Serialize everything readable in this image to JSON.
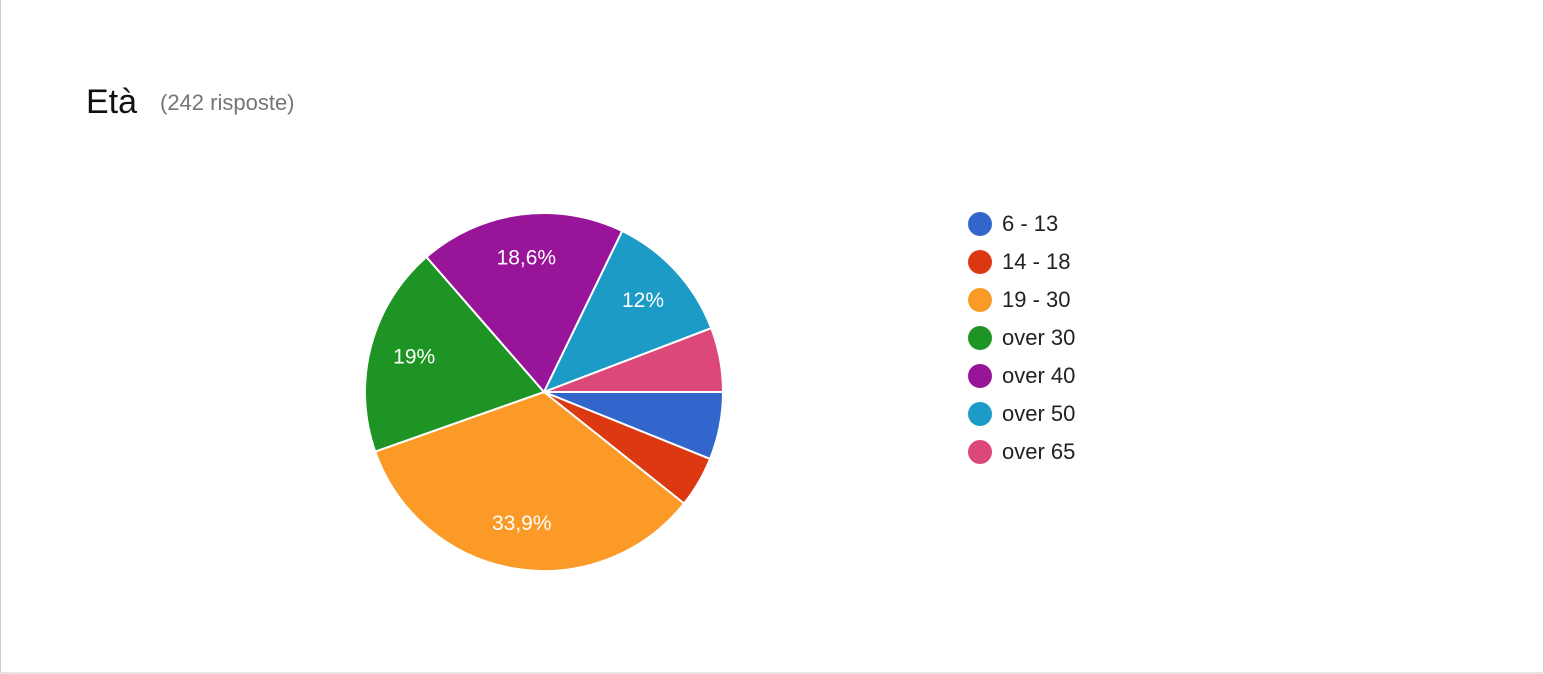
{
  "chart_data": {
    "type": "pie",
    "title": "Età",
    "subtitle": "(242 risposte)",
    "categories": [
      "6 - 13",
      "14 - 18",
      "19 - 30",
      "over 30",
      "over 40",
      "over 50",
      "over 65"
    ],
    "values": [
      6.1,
      4.6,
      33.9,
      19,
      18.6,
      12,
      5.8
    ],
    "value_labels": [
      null,
      null,
      "33,9%",
      "19%",
      "18,6%",
      "12%",
      null
    ],
    "colors": [
      "#3366cc",
      "#dc3912",
      "#fb9a27",
      "#1e9424",
      "#981499",
      "#1b9bc6",
      "#dc4979"
    ],
    "legend": "right"
  }
}
